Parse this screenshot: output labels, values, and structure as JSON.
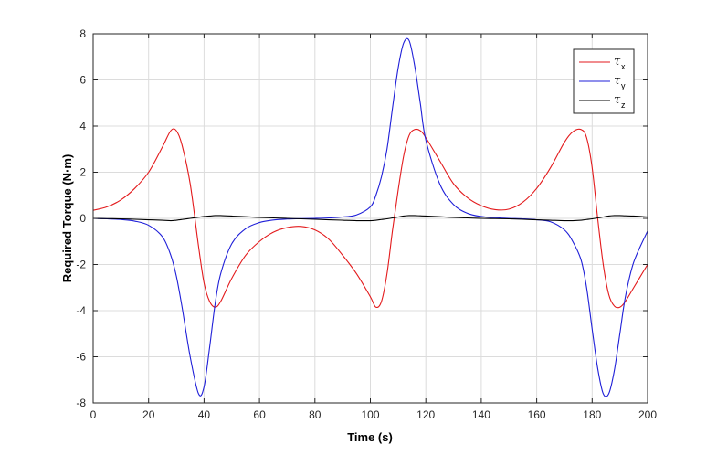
{
  "chart_data": {
    "type": "line",
    "title": "",
    "xlabel": "Time (s)",
    "ylabel": "Required Torque (N·m)",
    "xlim": [
      0,
      200
    ],
    "ylim": [
      -8,
      8
    ],
    "xticks": [
      0,
      20,
      40,
      60,
      80,
      100,
      120,
      140,
      160,
      180,
      200
    ],
    "yticks": [
      -8,
      -6,
      -4,
      -2,
      0,
      2,
      4,
      6,
      8
    ],
    "grid": true,
    "legend_position": "top-right",
    "x": [
      0,
      5,
      10,
      15,
      20,
      25,
      28,
      30,
      32,
      35,
      38,
      40,
      42,
      44,
      46,
      50,
      55,
      60,
      65,
      70,
      75,
      80,
      85,
      90,
      95,
      100,
      102,
      104,
      106,
      108,
      110,
      112,
      114,
      116,
      118,
      120,
      125,
      130,
      135,
      140,
      145,
      150,
      155,
      160,
      165,
      170,
      173,
      176,
      178,
      180,
      182,
      184,
      186,
      188,
      190,
      192,
      195,
      200
    ],
    "series": [
      {
        "name": "τ",
        "subscript": "x",
        "color": "#e31a1c",
        "values": [
          0.35,
          0.5,
          0.8,
          1.3,
          2.0,
          3.1,
          3.8,
          3.8,
          3.2,
          1.5,
          -1.2,
          -2.8,
          -3.6,
          -3.85,
          -3.6,
          -2.6,
          -1.6,
          -1.0,
          -0.6,
          -0.4,
          -0.35,
          -0.5,
          -0.9,
          -1.6,
          -2.4,
          -3.4,
          -3.85,
          -3.6,
          -2.4,
          -0.5,
          1.2,
          2.7,
          3.6,
          3.85,
          3.8,
          3.5,
          2.5,
          1.5,
          0.9,
          0.55,
          0.38,
          0.4,
          0.7,
          1.3,
          2.2,
          3.3,
          3.75,
          3.85,
          3.5,
          2.2,
          0.0,
          -2.0,
          -3.3,
          -3.8,
          -3.85,
          -3.6,
          -3.0,
          -2.0
        ]
      },
      {
        "name": "τ",
        "subscript": "y",
        "color": "#1f1fd8",
        "values": [
          0.0,
          -0.02,
          -0.05,
          -0.12,
          -0.3,
          -0.8,
          -1.6,
          -2.5,
          -3.8,
          -6.0,
          -7.6,
          -7.3,
          -5.6,
          -3.7,
          -2.4,
          -1.1,
          -0.45,
          -0.18,
          -0.07,
          -0.03,
          -0.01,
          0.0,
          0.02,
          0.06,
          0.15,
          0.5,
          1.0,
          1.8,
          3.0,
          4.8,
          6.5,
          7.6,
          7.7,
          6.6,
          5.0,
          3.4,
          1.5,
          0.6,
          0.22,
          0.08,
          0.03,
          0.0,
          -0.02,
          -0.06,
          -0.15,
          -0.5,
          -1.0,
          -1.8,
          -3.0,
          -4.8,
          -6.5,
          -7.6,
          -7.6,
          -6.6,
          -5.0,
          -3.4,
          -1.9,
          -0.55
        ]
      },
      {
        "name": "τ",
        "subscript": "z",
        "color": "#000000",
        "values": [
          0.0,
          -0.01,
          -0.02,
          -0.04,
          -0.06,
          -0.08,
          -0.1,
          -0.08,
          -0.05,
          0.0,
          0.05,
          0.08,
          0.1,
          0.12,
          0.12,
          0.1,
          0.07,
          0.04,
          0.02,
          0.0,
          -0.02,
          -0.04,
          -0.06,
          -0.08,
          -0.1,
          -0.1,
          -0.08,
          -0.05,
          -0.02,
          0.02,
          0.06,
          0.1,
          0.12,
          0.12,
          0.11,
          0.1,
          0.07,
          0.04,
          0.02,
          0.0,
          -0.01,
          -0.02,
          -0.04,
          -0.06,
          -0.08,
          -0.1,
          -0.1,
          -0.08,
          -0.05,
          -0.02,
          0.02,
          0.06,
          0.1,
          0.12,
          0.12,
          0.11,
          0.1,
          0.06
        ]
      }
    ]
  }
}
